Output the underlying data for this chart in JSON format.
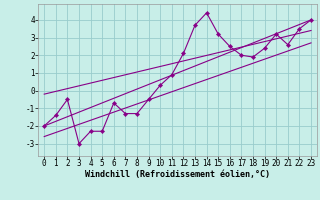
{
  "xlabel": "Windchill (Refroidissement éolien,°C)",
  "bg_color": "#c8eee8",
  "line_color": "#880088",
  "grid_color": "#99cccc",
  "xlim": [
    -0.5,
    23.5
  ],
  "ylim": [
    -3.7,
    4.9
  ],
  "xticks": [
    0,
    1,
    2,
    3,
    4,
    5,
    6,
    7,
    8,
    9,
    10,
    11,
    12,
    13,
    14,
    15,
    16,
    17,
    18,
    19,
    20,
    21,
    22,
    23
  ],
  "yticks": [
    -3,
    -2,
    -1,
    0,
    1,
    2,
    3,
    4
  ],
  "main_x": [
    0,
    1,
    2,
    3,
    4,
    5,
    6,
    7,
    8,
    9,
    10,
    11,
    12,
    13,
    14,
    15,
    16,
    17,
    18,
    19,
    20,
    21,
    22,
    23
  ],
  "main_y": [
    -2.0,
    -1.4,
    -0.5,
    -3.0,
    -2.3,
    -2.3,
    -0.7,
    -1.3,
    -1.3,
    -0.5,
    0.3,
    0.9,
    2.1,
    3.7,
    4.4,
    3.2,
    2.5,
    2.0,
    1.9,
    2.4,
    3.2,
    2.6,
    3.5,
    4.0
  ],
  "line1_x": [
    0,
    23
  ],
  "line1_y": [
    -2.0,
    4.0
  ],
  "line2_x": [
    0,
    23
  ],
  "line2_y": [
    -0.2,
    3.4
  ],
  "line3_x": [
    0,
    23
  ],
  "line3_y": [
    -2.6,
    2.7
  ],
  "tick_fontsize": 5.5,
  "xlabel_fontsize": 6.0
}
